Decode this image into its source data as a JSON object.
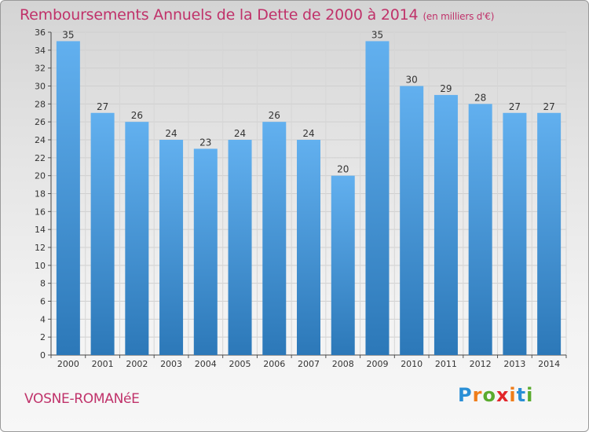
{
  "header": {
    "title": "Remboursements Annuels de la Dette de 2000 à 2014",
    "unit": "(en milliers d'€)"
  },
  "footer": {
    "town": "VOSNE-ROMANéE",
    "logo": {
      "letters": [
        "P",
        "r",
        "o",
        "x",
        "i",
        "t",
        "i"
      ],
      "colors": [
        "#2a8fd6",
        "#ef7d1a",
        "#5aab2e",
        "#e2262a",
        "#ef7d1a",
        "#2a8fd6",
        "#5aab2e"
      ]
    }
  },
  "colors": {
    "bar_light": "#62b0ef",
    "bar_dark": "#2c78b8",
    "title": "#c0326a"
  },
  "chart_data": {
    "type": "bar",
    "title": "Remboursements Annuels de la Dette de 2000 à 2014",
    "subtitle": "(en milliers d'€)",
    "categories": [
      "2000",
      "2001",
      "2002",
      "2003",
      "2004",
      "2005",
      "2006",
      "2007",
      "2008",
      "2009",
      "2010",
      "2011",
      "2012",
      "2013",
      "2014"
    ],
    "values": [
      35,
      27,
      26,
      24,
      23,
      24,
      26,
      24,
      20,
      35,
      30,
      29,
      28,
      27,
      27
    ],
    "ylim": [
      0,
      36
    ],
    "yticks": [
      0,
      2,
      4,
      6,
      8,
      10,
      12,
      14,
      16,
      18,
      20,
      22,
      24,
      26,
      28,
      30,
      32,
      34,
      36
    ],
    "grid": true,
    "legend": "none"
  }
}
